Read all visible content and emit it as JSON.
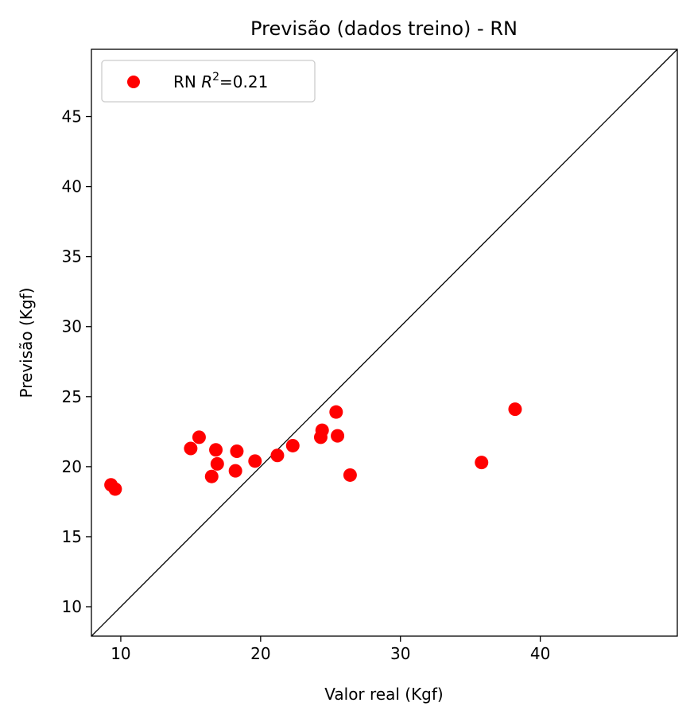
{
  "chart_data": {
    "type": "scatter",
    "title": "Previsão (dados treino) - RN",
    "xlabel": "Valor real (Kgf)",
    "ylabel": "Previsão (Kgf)",
    "xlim": [
      7.9,
      49.8
    ],
    "ylim": [
      7.9,
      49.8
    ],
    "xticks": [
      10,
      20,
      30,
      40
    ],
    "yticks": [
      10,
      15,
      20,
      25,
      30,
      35,
      40,
      45
    ],
    "grid": false,
    "legend_position": "top-left",
    "reference_line": "identity",
    "series": [
      {
        "name": "RN",
        "legend_label_prefix": "RN ",
        "legend_label_math": "R",
        "legend_label_sup": "2",
        "legend_label_suffix": "=0.21",
        "color": "#ff0000",
        "points": [
          [
            9.3,
            18.7
          ],
          [
            9.6,
            18.4
          ],
          [
            15.0,
            21.3
          ],
          [
            15.6,
            22.1
          ],
          [
            16.5,
            19.3
          ],
          [
            16.8,
            21.2
          ],
          [
            16.9,
            20.2
          ],
          [
            18.2,
            19.7
          ],
          [
            18.3,
            21.1
          ],
          [
            19.6,
            20.4
          ],
          [
            21.2,
            20.8
          ],
          [
            22.3,
            21.5
          ],
          [
            24.3,
            22.1
          ],
          [
            24.4,
            22.6
          ],
          [
            25.4,
            23.9
          ],
          [
            25.5,
            22.2
          ],
          [
            26.4,
            19.4
          ],
          [
            35.8,
            20.3
          ],
          [
            38.2,
            24.1
          ]
        ]
      }
    ]
  }
}
